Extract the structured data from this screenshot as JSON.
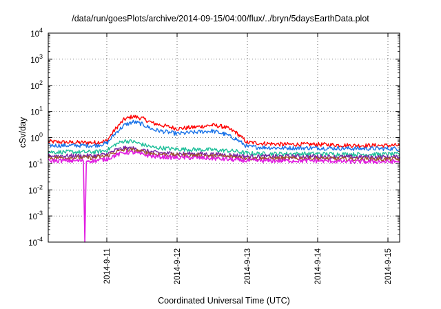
{
  "chart_data": {
    "type": "line",
    "title": "/data/run/goesPlots/archive/2014-09-15/04:00/flux/../bryn/5daysEarthData.plot",
    "xlabel": "Coordinated Universal Time (UTC)",
    "ylabel": "cSv/day",
    "y_scale": "log",
    "ylim": [
      0.0001,
      10000
    ],
    "y_ticks": [
      {
        "base": "10",
        "exp": "4"
      },
      {
        "base": "10",
        "exp": "3"
      },
      {
        "base": "10",
        "exp": "2"
      },
      {
        "base": "10",
        "exp": "1"
      },
      {
        "base": "10",
        "exp": "0"
      },
      {
        "base": "10",
        "exp": "-1"
      },
      {
        "base": "10",
        "exp": "-2"
      },
      {
        "base": "10",
        "exp": "-3"
      },
      {
        "base": "10",
        "exp": "-4"
      }
    ],
    "x_ticks": [
      "2014-9-11",
      "2014-9-12",
      "2014-9-13",
      "2014-9-14",
      "2014-9-15"
    ],
    "xlim": [
      "2014-09-10 04:00",
      "2014-09-15 04:00"
    ],
    "grid": true,
    "series": [
      {
        "color": "#ff0000",
        "x": [
          "2014-09-10 04:00",
          "2014-09-10 12:00",
          "2014-09-10 20:00",
          "2014-09-11 00:00",
          "2014-09-11 03:00",
          "2014-09-11 06:00",
          "2014-09-11 09:00",
          "2014-09-11 12:00",
          "2014-09-11 16:00",
          "2014-09-12 00:00",
          "2014-09-12 06:00",
          "2014-09-12 12:00",
          "2014-09-12 16:00",
          "2014-09-12 20:00",
          "2014-09-13 00:00",
          "2014-09-13 06:00",
          "2014-09-13 12:00",
          "2014-09-14 00:00",
          "2014-09-14 12:00",
          "2014-09-15 00:00",
          "2014-09-15 04:00"
        ],
        "values": [
          0.7,
          0.65,
          0.65,
          0.75,
          2.2,
          5.0,
          6.5,
          5.5,
          3.5,
          2.2,
          2.5,
          3.0,
          2.6,
          1.6,
          0.65,
          0.6,
          0.55,
          0.55,
          0.5,
          0.5,
          0.5
        ]
      },
      {
        "color": "#1a73e8",
        "x": [
          "2014-09-10 04:00",
          "2014-09-10 12:00",
          "2014-09-10 20:00",
          "2014-09-11 00:00",
          "2014-09-11 03:00",
          "2014-09-11 06:00",
          "2014-09-11 09:00",
          "2014-09-11 12:00",
          "2014-09-11 16:00",
          "2014-09-12 00:00",
          "2014-09-12 06:00",
          "2014-09-12 12:00",
          "2014-09-12 16:00",
          "2014-09-12 20:00",
          "2014-09-13 00:00",
          "2014-09-13 06:00",
          "2014-09-13 12:00",
          "2014-09-14 00:00",
          "2014-09-14 12:00",
          "2014-09-15 00:00",
          "2014-09-15 04:00"
        ],
        "values": [
          0.5,
          0.5,
          0.5,
          0.6,
          1.5,
          3.0,
          4.0,
          3.3,
          2.0,
          1.4,
          1.6,
          1.8,
          1.4,
          0.9,
          0.45,
          0.42,
          0.4,
          0.4,
          0.38,
          0.38,
          0.38
        ]
      },
      {
        "color": "#1fbf9a",
        "x": [
          "2014-09-10 04:00",
          "2014-09-10 12:00",
          "2014-09-10 20:00",
          "2014-09-11 00:00",
          "2014-09-11 03:00",
          "2014-09-11 06:00",
          "2014-09-11 09:00",
          "2014-09-11 12:00",
          "2014-09-11 16:00",
          "2014-09-12 00:00",
          "2014-09-12 06:00",
          "2014-09-12 12:00",
          "2014-09-12 16:00",
          "2014-09-12 20:00",
          "2014-09-13 00:00",
          "2014-09-13 06:00",
          "2014-09-13 12:00",
          "2014-09-14 00:00",
          "2014-09-14 12:00",
          "2014-09-15 00:00",
          "2014-09-15 04:00"
        ],
        "values": [
          0.28,
          0.28,
          0.28,
          0.32,
          0.55,
          0.75,
          0.7,
          0.55,
          0.42,
          0.36,
          0.35,
          0.34,
          0.32,
          0.3,
          0.25,
          0.24,
          0.24,
          0.24,
          0.23,
          0.23,
          0.23
        ]
      },
      {
        "color": "#7a1fa2",
        "x": [
          "2014-09-10 04:00",
          "2014-09-10 12:00",
          "2014-09-10 20:00",
          "2014-09-11 00:00",
          "2014-09-11 03:00",
          "2014-09-11 06:00",
          "2014-09-11 09:00",
          "2014-09-11 12:00",
          "2014-09-11 16:00",
          "2014-09-12 00:00",
          "2014-09-12 06:00",
          "2014-09-12 12:00",
          "2014-09-12 16:00",
          "2014-09-12 20:00",
          "2014-09-13 00:00",
          "2014-09-13 06:00",
          "2014-09-13 12:00",
          "2014-09-14 00:00",
          "2014-09-14 12:00",
          "2014-09-15 00:00",
          "2014-09-15 04:00"
        ],
        "values": [
          0.2,
          0.2,
          0.2,
          0.23,
          0.33,
          0.4,
          0.38,
          0.33,
          0.27,
          0.24,
          0.24,
          0.23,
          0.22,
          0.21,
          0.19,
          0.19,
          0.19,
          0.19,
          0.18,
          0.18,
          0.18
        ]
      },
      {
        "color": "#a0522d",
        "x": [
          "2014-09-10 04:00",
          "2014-09-10 12:00",
          "2014-09-10 20:00",
          "2014-09-11 00:00",
          "2014-09-11 03:00",
          "2014-09-11 06:00",
          "2014-09-11 09:00",
          "2014-09-11 12:00",
          "2014-09-11 16:00",
          "2014-09-12 00:00",
          "2014-09-12 06:00",
          "2014-09-12 12:00",
          "2014-09-12 16:00",
          "2014-09-12 20:00",
          "2014-09-13 00:00",
          "2014-09-13 06:00",
          "2014-09-13 12:00",
          "2014-09-14 00:00",
          "2014-09-14 12:00",
          "2014-09-15 00:00",
          "2014-09-15 04:00"
        ],
        "values": [
          0.17,
          0.17,
          0.17,
          0.2,
          0.28,
          0.34,
          0.33,
          0.29,
          0.24,
          0.21,
          0.21,
          0.2,
          0.19,
          0.18,
          0.16,
          0.16,
          0.16,
          0.16,
          0.15,
          0.15,
          0.15
        ]
      },
      {
        "color": "#e11de1",
        "x": [
          "2014-09-10 04:00",
          "2014-09-10 12:00",
          "2014-09-10 16:00",
          "2014-09-10 16:30",
          "2014-09-10 17:00",
          "2014-09-10 20:00",
          "2014-09-11 00:00",
          "2014-09-11 03:00",
          "2014-09-11 06:00",
          "2014-09-11 09:00",
          "2014-09-11 12:00",
          "2014-09-11 16:00",
          "2014-09-12 00:00",
          "2014-09-12 06:00",
          "2014-09-12 12:00",
          "2014-09-12 16:00",
          "2014-09-12 20:00",
          "2014-09-13 00:00",
          "2014-09-13 06:00",
          "2014-09-13 12:00",
          "2014-09-14 00:00",
          "2014-09-14 12:00",
          "2014-09-15 00:00",
          "2014-09-15 04:00"
        ],
        "values": [
          0.13,
          0.13,
          0.13,
          0.0001,
          0.13,
          0.13,
          0.15,
          0.21,
          0.27,
          0.27,
          0.23,
          0.19,
          0.17,
          0.17,
          0.16,
          0.15,
          0.14,
          0.13,
          0.13,
          0.13,
          0.13,
          0.12,
          0.12,
          0.12
        ]
      }
    ]
  }
}
